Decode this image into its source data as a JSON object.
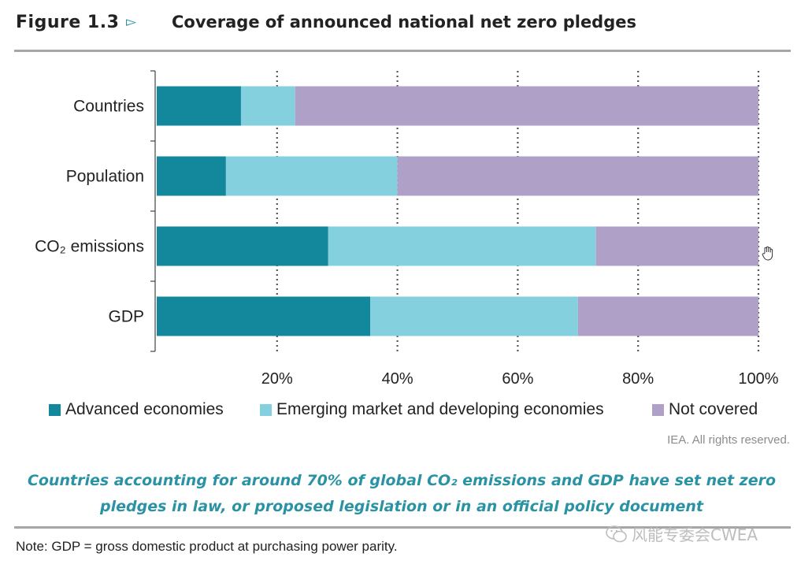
{
  "figure": {
    "label": "Figure 1.3",
    "arrow": "▻",
    "title": "Coverage of announced national net zero pledges"
  },
  "chart_data": {
    "type": "bar",
    "orientation": "horizontal",
    "stacked": true,
    "categories": [
      "Countries",
      "Population",
      "CO₂ emissions",
      "GDP"
    ],
    "series": [
      {
        "name": "Advanced economies",
        "color": "#13879b",
        "values": [
          14,
          11.5,
          28.5,
          35.5
        ]
      },
      {
        "name": "Emerging market and developing economies",
        "color": "#84d0df",
        "values": [
          9,
          28.5,
          44.5,
          34.5
        ]
      },
      {
        "name": "Not covered",
        "color": "#afa0c8",
        "values": [
          77,
          60,
          27,
          30
        ]
      }
    ],
    "xlim": [
      0,
      100
    ],
    "xticks": [
      20,
      40,
      60,
      80,
      100
    ],
    "xtick_labels": [
      "20%",
      "40%",
      "60%",
      "80%",
      "100%"
    ],
    "grid": "vertical dotted",
    "legend_position": "bottom"
  },
  "rights_text": "IEA. All rights reserved.",
  "caption": "Countries accounting for around 70% of global CO₂ emissions and GDP have set net zero pledges in law, or proposed legislation or in an official policy document",
  "note": "Note: GDP = gross domestic product at purchasing power parity.",
  "watermark": {
    "text": "风能专委会CWEA",
    "icon": "wechat-icon"
  },
  "cursor_icon": "hand-cursor-icon"
}
